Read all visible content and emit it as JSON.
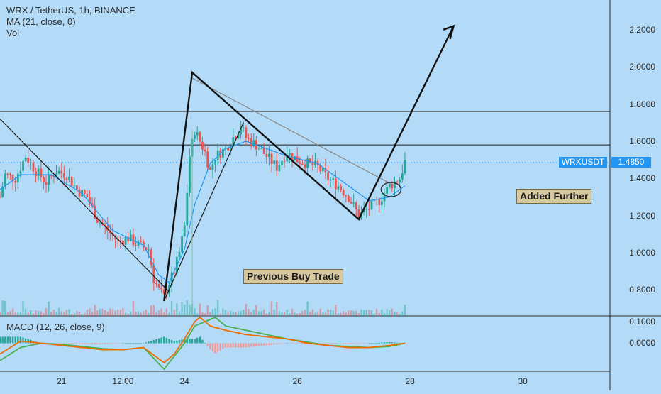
{
  "header": {
    "title": "WRX / TetherUS, 1h, BINANCE",
    "indicator_ma": "MA (21, close, 0)",
    "indicator_vol": "Vol",
    "macd_label": "MACD (12, 26, close, 9)"
  },
  "price_tag": {
    "symbol": "WRXUSDT",
    "price": "1.4850"
  },
  "annotations": {
    "previous_buy": "Previous Buy Trade",
    "added_further": "Added Further"
  },
  "colors": {
    "background": "#b3dbf7",
    "candle_up": "#26a69a",
    "candle_down": "#ef5350",
    "ma_line": "#2196f3",
    "macd_line": "#ef6c00",
    "signal_line": "#4caf50",
    "hist_up": "#26a69a",
    "hist_down": "#ef9a9a",
    "tag": "#2196f3"
  },
  "chart_data": {
    "type": "candlestick",
    "title": "WRX / TetherUS, 1h, BINANCE",
    "price_axis": {
      "ticks": [
        "2.2000",
        "2.0000",
        "1.8000",
        "1.6000",
        "1.4000",
        "1.2000",
        "1.0000",
        "0.8000"
      ],
      "tick_values": [
        2.2,
        2.0,
        1.8,
        1.6,
        1.4,
        1.2,
        1.0,
        0.8
      ],
      "range": [
        0.66,
        2.36
      ]
    },
    "macd_axis": {
      "ticks": [
        "0.1000",
        "0.0000"
      ],
      "tick_values": [
        0.1,
        0.0
      ],
      "range": [
        -0.13,
        0.12
      ]
    },
    "x_axis": {
      "ticks": [
        "21",
        "12:00",
        "24",
        "26",
        "28",
        "30"
      ],
      "tick_times": [
        34,
        46,
        58,
        80,
        102,
        124
      ],
      "range": [
        22,
        141
      ]
    },
    "close_series_key": [
      [
        22,
        1.3
      ],
      [
        23,
        1.42
      ],
      [
        25,
        1.4
      ],
      [
        27,
        1.52
      ],
      [
        29,
        1.44
      ],
      [
        31,
        1.38
      ],
      [
        33,
        1.44
      ],
      [
        35,
        1.42
      ],
      [
        37,
        1.34
      ],
      [
        39,
        1.3
      ],
      [
        41,
        1.18
      ],
      [
        43,
        1.12
      ],
      [
        45,
        1.06
      ],
      [
        47,
        1.08
      ],
      [
        49,
        1.04
      ],
      [
        51,
        1.02
      ],
      [
        52,
        0.86
      ],
      [
        53,
        0.8
      ],
      [
        54,
        0.76
      ],
      [
        55,
        0.84
      ],
      [
        56,
        0.9
      ],
      [
        57,
        1.0
      ],
      [
        58,
        1.14
      ],
      [
        59,
        1.52
      ],
      [
        60,
        1.66
      ],
      [
        61,
        1.6
      ],
      [
        62,
        1.54
      ],
      [
        63,
        1.44
      ],
      [
        64,
        1.52
      ],
      [
        66,
        1.56
      ],
      [
        68,
        1.64
      ],
      [
        69,
        1.68
      ],
      [
        70,
        1.62
      ],
      [
        72,
        1.58
      ],
      [
        74,
        1.52
      ],
      [
        76,
        1.46
      ],
      [
        78,
        1.54
      ],
      [
        80,
        1.5
      ],
      [
        82,
        1.48
      ],
      [
        84,
        1.46
      ],
      [
        86,
        1.4
      ],
      [
        88,
        1.36
      ],
      [
        90,
        1.3
      ],
      [
        92,
        1.2
      ],
      [
        94,
        1.24
      ],
      [
        96,
        1.28
      ],
      [
        98,
        1.36
      ],
      [
        100,
        1.4
      ],
      [
        101,
        1.49
      ]
    ],
    "ma_series_key": [
      [
        22,
        1.34
      ],
      [
        26,
        1.42
      ],
      [
        32,
        1.42
      ],
      [
        38,
        1.32
      ],
      [
        44,
        1.12
      ],
      [
        50,
        1.04
      ],
      [
        53,
        0.88
      ],
      [
        55,
        0.84
      ],
      [
        58,
        1.02
      ],
      [
        60,
        1.26
      ],
      [
        63,
        1.48
      ],
      [
        66,
        1.56
      ],
      [
        70,
        1.6
      ],
      [
        74,
        1.56
      ],
      [
        78,
        1.52
      ],
      [
        84,
        1.48
      ],
      [
        90,
        1.36
      ],
      [
        94,
        1.28
      ],
      [
        98,
        1.3
      ],
      [
        101,
        1.36
      ]
    ],
    "macd_line_key": [
      [
        22,
        -0.05
      ],
      [
        26,
        0.01
      ],
      [
        30,
        0.0
      ],
      [
        34,
        -0.01
      ],
      [
        38,
        -0.02
      ],
      [
        42,
        -0.03
      ],
      [
        46,
        -0.03
      ],
      [
        50,
        -0.02
      ],
      [
        54,
        -0.09
      ],
      [
        56,
        -0.05
      ],
      [
        58,
        0.02
      ],
      [
        60,
        0.1
      ],
      [
        61,
        0.12
      ],
      [
        63,
        0.08
      ],
      [
        66,
        0.06
      ],
      [
        70,
        0.04
      ],
      [
        74,
        0.03
      ],
      [
        78,
        0.02
      ],
      [
        82,
        0.0
      ],
      [
        86,
        -0.01
      ],
      [
        90,
        -0.02
      ],
      [
        94,
        -0.02
      ],
      [
        98,
        -0.01
      ],
      [
        101,
        0.0
      ]
    ],
    "signal_line_key": [
      [
        22,
        -0.08
      ],
      [
        26,
        -0.02
      ],
      [
        30,
        0.0
      ],
      [
        34,
        -0.005
      ],
      [
        38,
        -0.015
      ],
      [
        42,
        -0.025
      ],
      [
        46,
        -0.03
      ],
      [
        50,
        -0.02
      ],
      [
        54,
        -0.12
      ],
      [
        56,
        -0.06
      ],
      [
        58,
        0.0
      ],
      [
        60,
        0.08
      ],
      [
        62,
        0.1
      ],
      [
        64,
        0.12
      ],
      [
        66,
        0.08
      ],
      [
        70,
        0.06
      ],
      [
        74,
        0.04
      ],
      [
        78,
        0.02
      ],
      [
        82,
        0.005
      ],
      [
        86,
        -0.01
      ],
      [
        90,
        -0.015
      ],
      [
        94,
        -0.02
      ],
      [
        98,
        -0.015
      ],
      [
        101,
        0.0
      ]
    ],
    "annotations": [
      "Previous Buy Trade",
      "Added Further"
    ],
    "horizontal_levels": [
      1.76,
      1.58
    ],
    "last_price": 1.485
  }
}
